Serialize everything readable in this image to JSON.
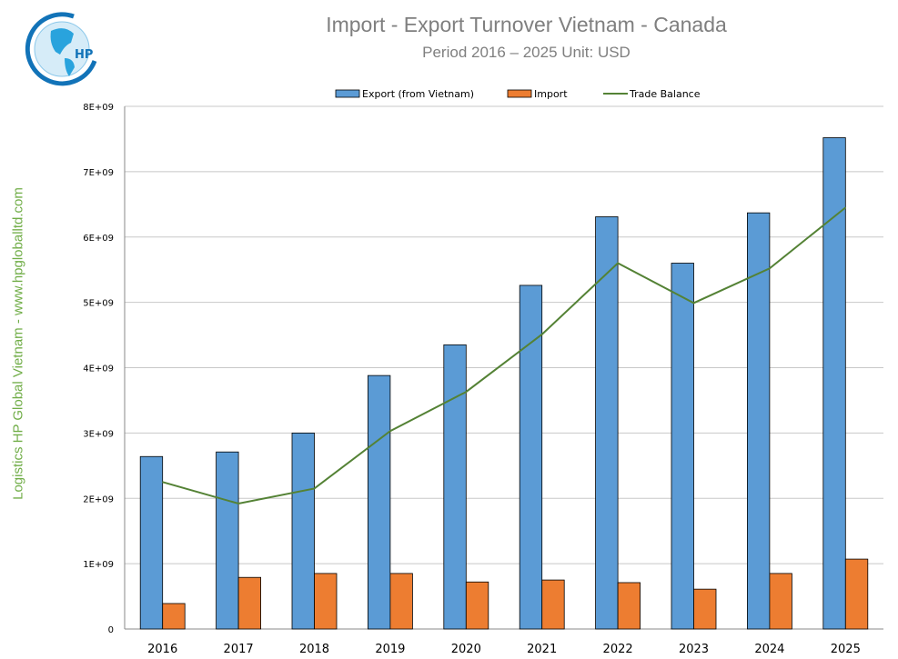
{
  "watermark": "Logistics HP Global Vietnam - www.hpgloballtd.com",
  "logo_text": "HP",
  "chart_data": {
    "type": "bar",
    "title": "Import - Export Turnover Vietnam - Canada",
    "subtitle": "Period 2016 – 2025  Unit: USD",
    "categories": [
      "2016",
      "2017",
      "2018",
      "2019",
      "2020",
      "2021",
      "2022",
      "2023",
      "2024",
      "2025"
    ],
    "series": [
      {
        "name": "Export (from Vietnam)",
        "type": "bar",
        "color": "#5b9bd5",
        "values": [
          2640000000.0,
          2710000000.0,
          3000000000.0,
          3880000000.0,
          4350000000.0,
          5260000000.0,
          6310000000.0,
          5600000000.0,
          6370000000.0,
          7520000000.0
        ]
      },
      {
        "name": "Import",
        "type": "bar",
        "color": "#ed7d31",
        "values": [
          390000000.0,
          790000000.0,
          850000000.0,
          850000000.0,
          720000000.0,
          750000000.0,
          710000000.0,
          610000000.0,
          850000000.0,
          1070000000.0
        ]
      },
      {
        "name": "Trade Balance",
        "type": "line",
        "color": "#548235",
        "values": [
          2250000000.0,
          1920000000.0,
          2150000000.0,
          3030000000.0,
          3630000000.0,
          4510000000.0,
          5600000000.0,
          4990000000.0,
          5520000000.0,
          6450000000.0
        ]
      }
    ],
    "yticks": [
      "0",
      "1E+09",
      "2E+09",
      "3E+09",
      "4E+09",
      "5E+09",
      "6E+09",
      "7E+09",
      "8E+09"
    ],
    "ylim": [
      0,
      8000000000.0
    ],
    "grid": true,
    "legend": "top"
  }
}
